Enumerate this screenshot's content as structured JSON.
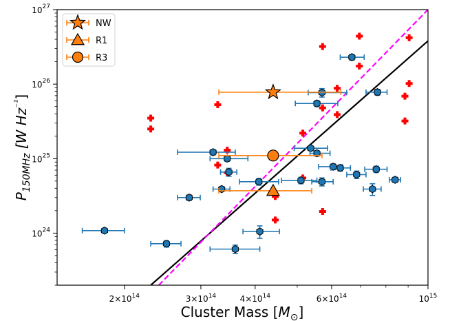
{
  "chart_data": {
    "type": "scatter",
    "xlabel": "Cluster Mass [M⊙]",
    "ylabel": "P150MHz [W Hz⁻¹]",
    "xscale": "log",
    "yscale": "log",
    "xlim": [
      140000000000000,
      1000000000000000
    ],
    "ylim": [
      200000000000000000000000,
      1e+27
    ],
    "x_ticks": [
      {
        "value": 200000000000000,
        "mantissa": "2",
        "sep": "×",
        "base": "10",
        "exp": "14"
      },
      {
        "value": 300000000000000,
        "mantissa": "3",
        "sep": "×",
        "base": "10",
        "exp": "14"
      },
      {
        "value": 400000000000000,
        "mantissa": "4",
        "sep": "×",
        "base": "10",
        "exp": "14"
      },
      {
        "value": 600000000000000,
        "mantissa": "6",
        "sep": "×",
        "base": "10",
        "exp": "14"
      },
      {
        "value": 1000000000000000,
        "mantissa": "",
        "sep": "",
        "base": "10",
        "exp": "15"
      }
    ],
    "y_ticks": [
      {
        "value": 1e+24,
        "base": "10",
        "exp": "24"
      },
      {
        "value": 1e+25,
        "base": "10",
        "exp": "25"
      },
      {
        "value": 1e+26,
        "base": "10",
        "exp": "26"
      },
      {
        "value": 1e+27,
        "base": "10",
        "exp": "27"
      }
    ],
    "grid": false,
    "legend_position": "top-left",
    "legend": [
      {
        "name": "NW",
        "marker": "star"
      },
      {
        "name": "R1",
        "marker": "triangle"
      },
      {
        "name": "R3",
        "marker": "circle"
      }
    ],
    "colors": {
      "sample": "#1f77b4",
      "highlight": "#ff7f0e",
      "upper_limits": "#ff0000",
      "fit": "#000000",
      "fit_alt": "#ff00ff"
    },
    "series": [
      {
        "name": "NW",
        "marker": "star",
        "points": [
          {
            "x": 440000000000000,
            "y": 7.8e+25,
            "xerr": [
              110000000000000,
              190000000000000
            ]
          }
        ]
      },
      {
        "name": "R1",
        "marker": "triangle",
        "points": [
          {
            "x": 440000000000000,
            "y": 3.7e+24,
            "xerr": [
              110000000000000,
              100000000000000
            ]
          }
        ]
      },
      {
        "name": "R3",
        "marker": "circle",
        "points": [
          {
            "x": 440000000000000,
            "y": 1.1e+25,
            "xerr": [
              110000000000000,
              130000000000000
            ]
          }
        ]
      },
      {
        "marker": "circle",
        "style": "errorbar",
        "points": [
          {
            "x": 180000000000000,
            "y": 1.08e+24,
            "xerr": [
              20000000000000,
              20000000000000
            ],
            "yerr": [
              8e+22,
              8e+22
            ]
          },
          {
            "x": 250000000000000,
            "y": 7.2e+23,
            "xerr": [
              20000000000000,
              20000000000000
            ],
            "yerr": [
              7e+22,
              7e+22
            ]
          },
          {
            "x": 282000000000000,
            "y": 3e+24,
            "xerr": [
              17000000000000,
              17000000000000
            ],
            "yerr": [
              2.5e+23,
              2.5e+23
            ]
          },
          {
            "x": 320000000000000,
            "y": 1.22e+25,
            "xerr": [
              55000000000000,
              40000000000000
            ],
            "yerr": [
              1e+24,
              1e+24
            ]
          },
          {
            "x": 335000000000000,
            "y": 3.9e+24,
            "xerr": [
              15000000000000,
              15000000000000
            ],
            "yerr": [
              3e+23,
              3e+23
            ]
          },
          {
            "x": 345000000000000,
            "y": 1e+25,
            "xerr": [
              30000000000000,
              40000000000000
            ],
            "yerr": [
              8e+23,
              8e+23
            ]
          },
          {
            "x": 348000000000000,
            "y": 6.6e+24,
            "xerr": [
              15000000000000,
              15000000000000
            ],
            "yerr": [
              8e+23,
              8e+23
            ]
          },
          {
            "x": 360000000000000,
            "y": 6.1e+23,
            "xerr": [
              45000000000000,
              50000000000000
            ],
            "yerr": [
              8e+22,
              8e+22
            ]
          },
          {
            "x": 408000000000000,
            "y": 4.9e+24,
            "xerr": [
              40000000000000,
              45000000000000
            ],
            "yerr": [
              5e+23,
              5e+23
            ]
          },
          {
            "x": 410000000000000,
            "y": 1.05e+24,
            "xerr": [
              35000000000000,
              45000000000000
            ],
            "yerr": [
              2e+23,
              2e+23
            ]
          },
          {
            "x": 510000000000000,
            "y": 5.1e+24,
            "xerr": [
              50000000000000,
              45000000000000
            ],
            "yerr": [
              5e+23,
              5e+23
            ]
          },
          {
            "x": 537000000000000,
            "y": 1.38e+25,
            "xerr": [
              45000000000000,
              50000000000000
            ],
            "yerr": [
              1e+24,
              1e+24
            ]
          },
          {
            "x": 555000000000000,
            "y": 1.18e+25,
            "xerr": [
              20000000000000,
              40000000000000
            ],
            "yerr": [
              1e+24,
              1e+24
            ]
          },
          {
            "x": 555000000000000,
            "y": 5.5e+25,
            "xerr": [
              60000000000000,
              65000000000000
            ],
            "yerr": [
              5e+24,
              5e+24
            ]
          },
          {
            "x": 570000000000000,
            "y": 7.7e+25,
            "xerr": [
              40000000000000,
              80000000000000
            ],
            "yerr": [
              1e+25,
              1e+25
            ]
          },
          {
            "x": 570000000000000,
            "y": 4.9e+24,
            "xerr": [
              30000000000000,
              35000000000000
            ],
            "yerr": [
              6e+23,
              6e+23
            ]
          },
          {
            "x": 605000000000000,
            "y": 7.8e+24,
            "xerr": [
              45000000000000,
              30000000000000
            ],
            "yerr": [
              7e+23,
              7e+23
            ]
          },
          {
            "x": 628000000000000,
            "y": 7.5e+24,
            "xerr": [
              30000000000000,
              35000000000000
            ],
            "yerr": [
              7e+23,
              7e+23
            ]
          },
          {
            "x": 668000000000000,
            "y": 2.3e+26,
            "xerr": [
              40000000000000,
              45000000000000
            ],
            "yerr": [
              2e+25,
              2e+25
            ]
          },
          {
            "x": 685000000000000,
            "y": 6.1e+24,
            "xerr": [
              35000000000000,
              35000000000000
            ],
            "yerr": [
              7e+23,
              7e+23
            ]
          },
          {
            "x": 745000000000000,
            "y": 3.9e+24,
            "xerr": [
              35000000000000,
              35000000000000
            ],
            "yerr": [
              7e+23,
              7e+23
            ]
          },
          {
            "x": 760000000000000,
            "y": 7.2e+24,
            "xerr": [
              45000000000000,
              45000000000000
            ],
            "yerr": [
              7e+23,
              7e+23
            ]
          },
          {
            "x": 765000000000000,
            "y": 7.8e+25,
            "xerr": [
              45000000000000,
              40000000000000
            ],
            "yerr": [
              7e+24,
              7e+24
            ]
          },
          {
            "x": 840000000000000,
            "y": 5.2e+24,
            "xerr": [
              25000000000000,
              25000000000000
            ],
            "yerr": [
              4e+23,
              4e+23
            ]
          }
        ]
      },
      {
        "marker": "plus",
        "points": [
          {
            "x": 230000000000000,
            "y": 3.5e+25
          },
          {
            "x": 230000000000000,
            "y": 2.5e+25
          },
          {
            "x": 328000000000000,
            "y": 5.3e+25
          },
          {
            "x": 328000000000000,
            "y": 8.2e+24
          },
          {
            "x": 345000000000000,
            "y": 1.3e+25
          },
          {
            "x": 345000000000000,
            "y": 6.5e+24
          },
          {
            "x": 445000000000000,
            "y": 3.1e+24
          },
          {
            "x": 445000000000000,
            "y": 1.5e+24
          },
          {
            "x": 515000000000000,
            "y": 2.2e+25
          },
          {
            "x": 515000000000000,
            "y": 5.5e+24
          },
          {
            "x": 572000000000000,
            "y": 3.2e+26
          },
          {
            "x": 572000000000000,
            "y": 4.8e+25
          },
          {
            "x": 572000000000000,
            "y": 1.95e+24
          },
          {
            "x": 618000000000000,
            "y": 8.8e+25
          },
          {
            "x": 618000000000000,
            "y": 3.9e+25
          },
          {
            "x": 695000000000000,
            "y": 4.4e+26
          },
          {
            "x": 695000000000000,
            "y": 1.75e+26
          },
          {
            "x": 885000000000000,
            "y": 6.9e+25
          },
          {
            "x": 885000000000000,
            "y": 3.2e+25
          },
          {
            "x": 905000000000000,
            "y": 4.2e+26
          },
          {
            "x": 905000000000000,
            "y": 1.02e+26
          }
        ]
      },
      {
        "style": "solid-line",
        "points": [
          {
            "x": 230000000000000,
            "y": 2e+23
          },
          {
            "x": 1000000000000000,
            "y": 3.8e+26
          }
        ]
      },
      {
        "style": "dashed-line",
        "points": [
          {
            "x": 240000000000000,
            "y": 2e+23
          },
          {
            "x": 1000000000000000,
            "y": 1e+27
          }
        ]
      }
    ]
  }
}
